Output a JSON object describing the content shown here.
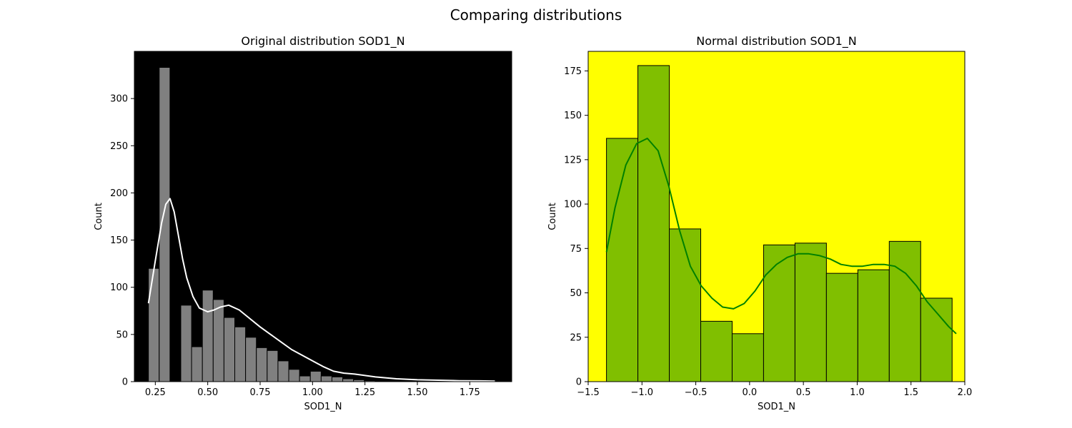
{
  "figure": {
    "suptitle": "Comparing distributions"
  },
  "chart_data": [
    {
      "type": "bar",
      "title": "Original distribution SOD1_N",
      "xlabel": "SOD1_N",
      "ylabel": "Count",
      "xlim": [
        0.15,
        1.95
      ],
      "ylim": [
        0,
        350
      ],
      "xticks": [
        0.25,
        0.5,
        0.75,
        1.0,
        1.25,
        1.5,
        1.75
      ],
      "xtick_labels": [
        "0.25",
        "0.50",
        "0.75",
        "1.00",
        "1.25",
        "1.50",
        "1.75"
      ],
      "yticks": [
        0,
        50,
        100,
        150,
        200,
        250,
        300
      ],
      "yticks_labels": [
        "0",
        "50",
        "100",
        "150",
        "200",
        "250",
        "300"
      ],
      "background": "#000000",
      "bar_color": "#808080",
      "bar_edge_color": "#000000",
      "kde_color": "#ffffff",
      "bins": [
        {
          "x0": 0.217,
          "x1": 0.2685,
          "count": 120
        },
        {
          "x0": 0.2685,
          "x1": 0.32,
          "count": 333
        },
        {
          "x0": 0.32,
          "x1": 0.3715,
          "count": 0
        },
        {
          "x0": 0.3715,
          "x1": 0.423,
          "count": 81
        },
        {
          "x0": 0.423,
          "x1": 0.4745,
          "count": 37
        },
        {
          "x0": 0.4745,
          "x1": 0.526,
          "count": 97
        },
        {
          "x0": 0.526,
          "x1": 0.5775,
          "count": 87
        },
        {
          "x0": 0.5775,
          "x1": 0.629,
          "count": 68
        },
        {
          "x0": 0.629,
          "x1": 0.6805,
          "count": 58
        },
        {
          "x0": 0.6805,
          "x1": 0.732,
          "count": 47
        },
        {
          "x0": 0.732,
          "x1": 0.7835,
          "count": 36
        },
        {
          "x0": 0.7835,
          "x1": 0.835,
          "count": 33
        },
        {
          "x0": 0.835,
          "x1": 0.8865,
          "count": 22
        },
        {
          "x0": 0.8865,
          "x1": 0.938,
          "count": 13
        },
        {
          "x0": 0.938,
          "x1": 0.9895,
          "count": 6
        },
        {
          "x0": 0.9895,
          "x1": 1.041,
          "count": 11
        },
        {
          "x0": 1.041,
          "x1": 1.0925,
          "count": 6
        },
        {
          "x0": 1.0925,
          "x1": 1.144,
          "count": 5
        },
        {
          "x0": 1.144,
          "x1": 1.1955,
          "count": 3
        },
        {
          "x0": 1.1955,
          "x1": 1.247,
          "count": 2
        },
        {
          "x0": 1.247,
          "x1": 1.2985,
          "count": 1
        }
      ],
      "kde": {
        "x": [
          0.217,
          0.25,
          0.28,
          0.3,
          0.32,
          0.34,
          0.36,
          0.38,
          0.4,
          0.43,
          0.46,
          0.5,
          0.53,
          0.56,
          0.6,
          0.65,
          0.7,
          0.75,
          0.8,
          0.85,
          0.9,
          1.0,
          1.05,
          1.1,
          1.15,
          1.2,
          1.3,
          1.4,
          1.5,
          1.6,
          1.7,
          1.8,
          1.87
        ],
        "y": [
          83,
          128,
          168,
          188,
          194,
          180,
          155,
          130,
          110,
          90,
          78,
          74,
          76,
          79,
          81,
          76,
          67,
          58,
          50,
          42,
          34,
          22,
          16,
          11,
          9,
          8,
          5,
          3,
          2,
          1.5,
          1,
          0.8,
          0.5
        ]
      }
    },
    {
      "type": "bar",
      "title": "Normal distribution SOD1_N",
      "xlabel": "SOD1_N",
      "ylabel": "Count",
      "xlim": [
        -1.5,
        2.0
      ],
      "ylim": [
        0,
        186
      ],
      "xticks": [
        -1.5,
        -1.0,
        -0.5,
        0.0,
        0.5,
        1.0,
        1.5,
        2.0
      ],
      "xtick_labels": [
        "−1.5",
        "−1.0",
        "−0.5",
        "0.0",
        "0.5",
        "1.0",
        "1.5",
        "2.0"
      ],
      "yticks": [
        0,
        25,
        50,
        75,
        100,
        125,
        150,
        175
      ],
      "yticks_labels": [
        "0",
        "25",
        "50",
        "75",
        "100",
        "125",
        "150",
        "175"
      ],
      "background": "#ffff00",
      "bar_color": "#80bf00",
      "bar_edge_color": "#000000",
      "kde_color": "#008000",
      "bins": [
        {
          "x0": -1.33,
          "x1": -1.038,
          "count": 137
        },
        {
          "x0": -1.038,
          "x1": -0.746,
          "count": 178
        },
        {
          "x0": -0.746,
          "x1": -0.454,
          "count": 86
        },
        {
          "x0": -0.454,
          "x1": -0.162,
          "count": 34
        },
        {
          "x0": -0.162,
          "x1": 0.13,
          "count": 27
        },
        {
          "x0": 0.13,
          "x1": 0.422,
          "count": 77
        },
        {
          "x0": 0.422,
          "x1": 0.714,
          "count": 78
        },
        {
          "x0": 0.714,
          "x1": 1.006,
          "count": 61
        },
        {
          "x0": 1.006,
          "x1": 1.298,
          "count": 63
        },
        {
          "x0": 1.298,
          "x1": 1.59,
          "count": 79
        },
        {
          "x0": 1.59,
          "x1": 1.882,
          "count": 47
        }
      ],
      "kde": {
        "x": [
          -1.33,
          -1.25,
          -1.15,
          -1.05,
          -0.95,
          -0.85,
          -0.75,
          -0.65,
          -0.55,
          -0.45,
          -0.35,
          -0.25,
          -0.15,
          -0.05,
          0.05,
          0.15,
          0.25,
          0.35,
          0.45,
          0.55,
          0.65,
          0.75,
          0.85,
          0.95,
          1.05,
          1.15,
          1.25,
          1.35,
          1.45,
          1.55,
          1.65,
          1.75,
          1.85,
          1.92
        ],
        "y": [
          73,
          98,
          122,
          134,
          137,
          130,
          110,
          85,
          65,
          54,
          47,
          42,
          41,
          44,
          51,
          60,
          66,
          70,
          72,
          72,
          71,
          69,
          66,
          65,
          65,
          66,
          66,
          65,
          61,
          54,
          45,
          38,
          31,
          27
        ]
      }
    }
  ]
}
